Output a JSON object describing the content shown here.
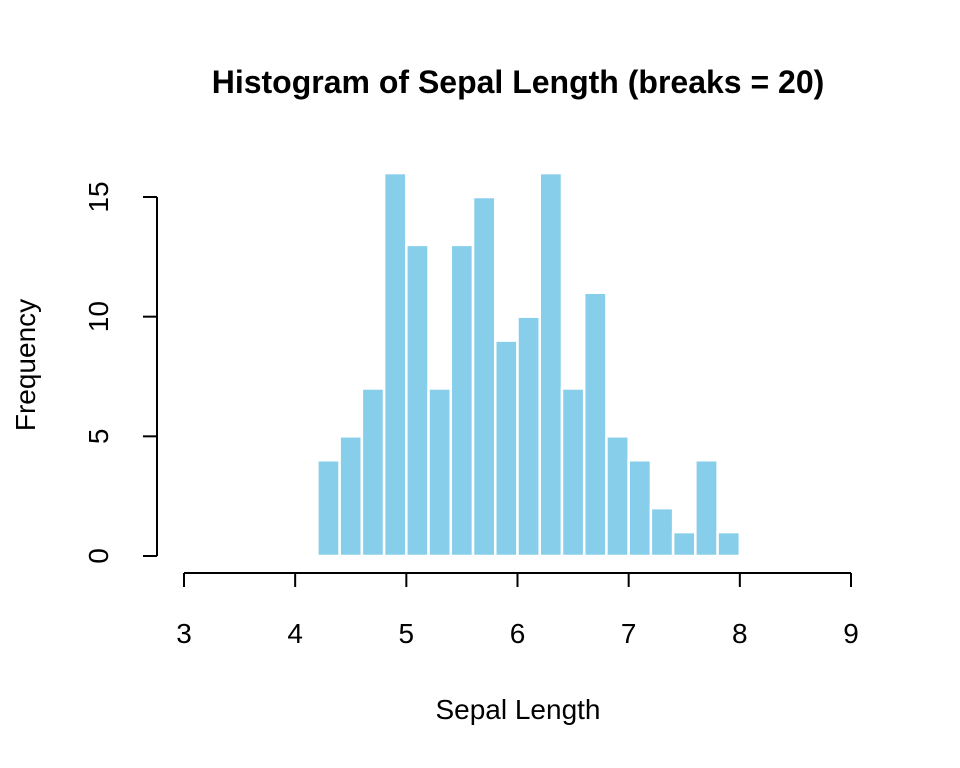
{
  "chart_data": {
    "type": "bar",
    "title": "Histogram of Sepal Length (breaks = 20)",
    "xlabel": "Sepal Length",
    "ylabel": "Frequency",
    "xlim": [
      3,
      9
    ],
    "ylim": [
      0,
      16
    ],
    "x_ticks": [
      3,
      4,
      5,
      6,
      7,
      8,
      9
    ],
    "y_ticks": [
      0,
      5,
      10,
      15
    ],
    "bar_color": "#87CEEB",
    "bin_edges": [
      4.2,
      4.4,
      4.6,
      4.8,
      5.0,
      5.2,
      5.4,
      5.6,
      5.8,
      6.0,
      6.2,
      6.4,
      6.6,
      6.8,
      7.0,
      7.2,
      7.4,
      7.6,
      7.8,
      8.0
    ],
    "values": [
      4,
      5,
      7,
      16,
      13,
      7,
      13,
      15,
      9,
      10,
      16,
      7,
      11,
      5,
      4,
      2,
      1,
      4,
      1
    ]
  }
}
